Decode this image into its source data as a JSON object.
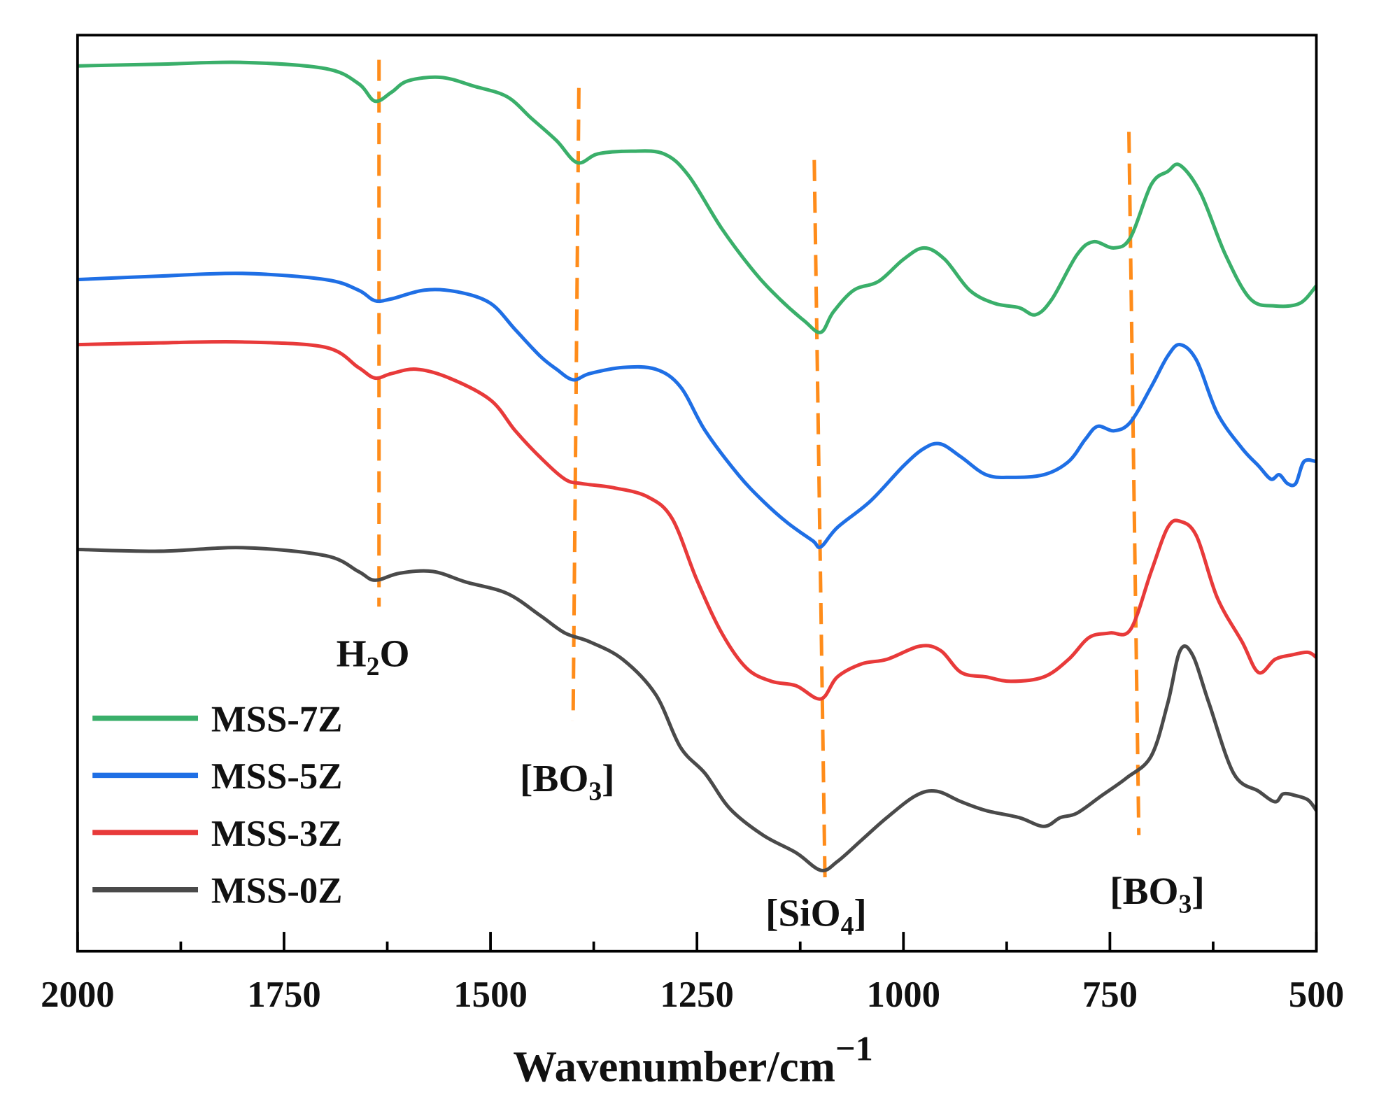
{
  "chart_data": {
    "type": "line",
    "title": "",
    "xlabel": "Wavenumber/cm",
    "xlabel_sup": "−1",
    "ylabel": "",
    "xlim": [
      2000,
      500
    ],
    "ylim": [
      0,
      104.2
    ],
    "xticks": [
      2000,
      1750,
      1500,
      1250,
      1000,
      750,
      500
    ],
    "xtick_labels": [
      "2000",
      "1750",
      "1500",
      "1250",
      "1000",
      "750",
      "500"
    ],
    "minor_xticks": [
      1875,
      1625,
      1375,
      1125,
      875,
      625
    ],
    "legend_position": "bottom-left",
    "series": [
      {
        "name": "MSS-7Z",
        "color": "#3aaf6a",
        "x": [
          2000,
          1900,
          1800,
          1700,
          1660,
          1640,
          1620,
          1600,
          1560,
          1520,
          1480,
          1450,
          1420,
          1395,
          1370,
          1330,
          1290,
          1260,
          1220,
          1180,
          1150,
          1120,
          1100,
          1085,
          1060,
          1030,
          1000,
          975,
          950,
          920,
          890,
          860,
          840,
          820,
          790,
          770,
          745,
          725,
          700,
          680,
          665,
          640,
          610,
          580,
          550,
          520,
          500
        ],
        "y": [
          100.7,
          100.9,
          101.1,
          100.4,
          98.7,
          96.7,
          97.7,
          99.0,
          99.4,
          98.4,
          97.2,
          94.7,
          92.2,
          89.7,
          90.7,
          91.0,
          90.7,
          88.2,
          82.2,
          77.2,
          74.2,
          71.7,
          70.4,
          72.7,
          75.2,
          76.2,
          78.7,
          80.0,
          78.7,
          75.2,
          73.7,
          73.2,
          72.4,
          74.2,
          79.2,
          80.7,
          80.0,
          81.2,
          87.2,
          88.7,
          89.4,
          86.2,
          79.2,
          74.2,
          73.4,
          73.7,
          75.7
        ]
      },
      {
        "name": "MSS-5Z",
        "color": "#1f6fe5",
        "x": [
          2000,
          1900,
          1800,
          1700,
          1660,
          1640,
          1620,
          1580,
          1540,
          1500,
          1470,
          1440,
          1420,
          1400,
          1380,
          1340,
          1300,
          1270,
          1240,
          1200,
          1170,
          1140,
          1110,
          1100,
          1080,
          1040,
          1000,
          975,
          955,
          930,
          900,
          870,
          830,
          800,
          780,
          765,
          745,
          725,
          700,
          680,
          665,
          645,
          620,
          590,
          570,
          555,
          545,
          535,
          525,
          515,
          500
        ],
        "y": [
          76.4,
          76.8,
          77.1,
          76.4,
          75.2,
          74.0,
          74.2,
          75.2,
          75.0,
          73.7,
          70.7,
          67.7,
          66.2,
          65.0,
          65.7,
          66.4,
          66.2,
          64.2,
          59.2,
          54.2,
          51.2,
          48.7,
          46.7,
          46.0,
          48.2,
          51.2,
          55.2,
          57.2,
          57.7,
          56.2,
          54.2,
          53.9,
          54.2,
          55.7,
          58.2,
          59.7,
          59.2,
          60.2,
          64.2,
          67.7,
          69.0,
          67.2,
          61.2,
          57.2,
          55.2,
          53.7,
          54.2,
          53.2,
          53.2,
          55.7,
          55.7
        ]
      },
      {
        "name": "MSS-3Z",
        "color": "#e83a3a",
        "x": [
          2000,
          1900,
          1800,
          1700,
          1660,
          1640,
          1620,
          1590,
          1550,
          1500,
          1470,
          1440,
          1410,
          1390,
          1350,
          1310,
          1280,
          1250,
          1220,
          1190,
          1160,
          1130,
          1100,
          1080,
          1050,
          1020,
          980,
          955,
          930,
          900,
          870,
          830,
          800,
          775,
          750,
          725,
          700,
          680,
          665,
          645,
          620,
          590,
          570,
          550,
          530,
          510,
          500
        ],
        "y": [
          69.0,
          69.2,
          69.3,
          68.7,
          66.4,
          65.2,
          65.7,
          66.2,
          65.2,
          62.7,
          59.2,
          56.2,
          53.7,
          53.2,
          52.7,
          51.7,
          49.2,
          42.2,
          36.2,
          32.2,
          30.7,
          30.2,
          28.7,
          31.2,
          32.7,
          33.2,
          34.7,
          34.2,
          31.7,
          31.2,
          30.7,
          31.2,
          33.2,
          35.7,
          36.2,
          36.6,
          43.2,
          48.2,
          48.9,
          47.2,
          40.2,
          35.2,
          31.7,
          33.2,
          33.7,
          34.0,
          33.4
        ]
      },
      {
        "name": "MSS-0Z",
        "color": "#4a4a4a",
        "x": [
          2000,
          1900,
          1800,
          1700,
          1660,
          1640,
          1610,
          1570,
          1530,
          1480,
          1440,
          1410,
          1380,
          1340,
          1300,
          1270,
          1240,
          1210,
          1170,
          1130,
          1100,
          1080,
          1050,
          1020,
          985,
          960,
          930,
          900,
          860,
          830,
          810,
          790,
          760,
          730,
          700,
          680,
          665,
          650,
          630,
          600,
          570,
          550,
          540,
          525,
          510,
          500
        ],
        "y": [
          45.7,
          45.5,
          45.9,
          45.0,
          43.2,
          42.2,
          43.0,
          43.2,
          42.0,
          40.7,
          38.2,
          36.2,
          35.2,
          33.2,
          29.2,
          23.2,
          20.2,
          16.2,
          13.2,
          11.2,
          9.2,
          10.2,
          12.7,
          15.2,
          17.7,
          18.2,
          17.0,
          16.0,
          15.2,
          14.2,
          15.2,
          15.7,
          17.7,
          19.7,
          22.2,
          28.2,
          34.2,
          33.7,
          28.2,
          20.2,
          18.2,
          17.0,
          17.9,
          17.7,
          17.2,
          16.0
        ]
      }
    ],
    "reference_lines": {
      "color": "#ff8c1a",
      "style": "dashed",
      "lines": [
        {
          "label": "H2O",
          "x_top": 1635,
          "x_bottom": 1635,
          "y_top": 101.4,
          "y_bottom": 39.2
        },
        {
          "label": "[BO3]",
          "x_top": 1393,
          "x_bottom": 1400,
          "y_top": 98.2,
          "y_bottom": 26.2
        },
        {
          "label": "[SiO4]",
          "x_top": 1108,
          "x_bottom": 1095,
          "y_top": 90.0,
          "y_bottom": 8.2
        },
        {
          "label": "[BO3]",
          "x_top": 727,
          "x_bottom": 715,
          "y_top": 93.2,
          "y_bottom": 13.2
        }
      ]
    },
    "annotations": {
      "h2o": {
        "main": "H",
        "sub": "2",
        "tail": "O"
      },
      "bo3_left": {
        "main": "[BO",
        "sub": "3",
        "tail": "]"
      },
      "sio4": {
        "main": "[SiO",
        "sub": "4",
        "tail": "]"
      },
      "bo3_right": {
        "main": "[BO",
        "sub": "3",
        "tail": "]"
      }
    }
  }
}
